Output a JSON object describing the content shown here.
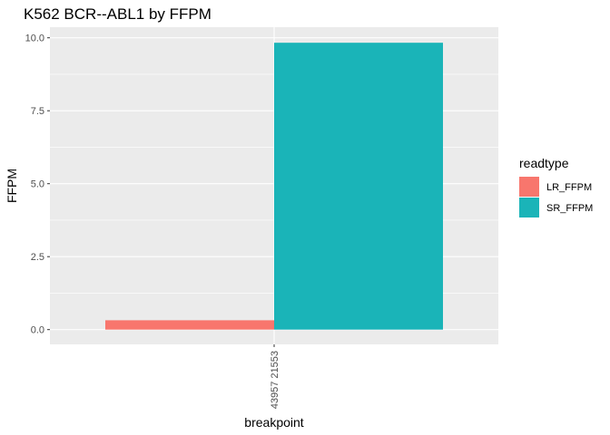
{
  "chart_data": {
    "type": "bar",
    "title": "K562 BCR--ABL1 by FFPM",
    "xlabel": "breakpoint",
    "ylabel": "FFPM",
    "categories": [
      "43957 21553"
    ],
    "series": [
      {
        "name": "LR_FFPM",
        "values": [
          0.32
        ]
      },
      {
        "name": "SR_FFPM",
        "values": [
          9.83
        ]
      }
    ],
    "ylim": [
      -0.5,
      10.3
    ],
    "yticks": [
      0.0,
      2.5,
      5.0,
      7.5,
      10.0
    ],
    "ytick_labels": [
      "0.0",
      "2.5",
      "5.0",
      "7.5",
      "10.0"
    ],
    "grid": true,
    "legend": {
      "title": "readtype",
      "placement": "right",
      "entries": [
        "LR_FFPM",
        "SR_FFPM"
      ]
    },
    "colors": {
      "LR_FFPM": "#F8766D",
      "SR_FFPM": "#1AB4B8",
      "panel_background": "#EBEBEB",
      "grid": "#FFFFFF"
    }
  }
}
